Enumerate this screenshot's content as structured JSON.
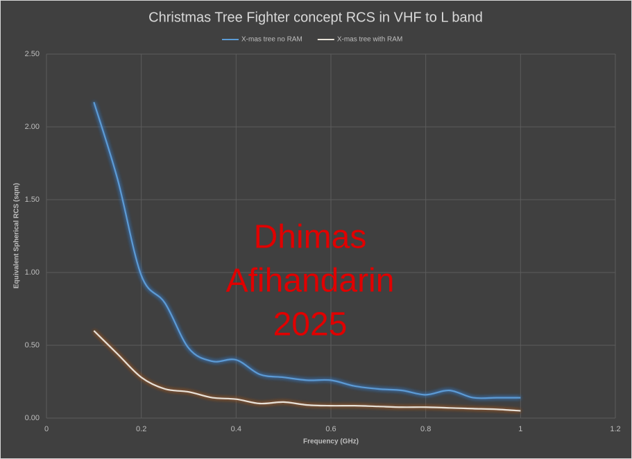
{
  "chart_data": {
    "type": "line",
    "title": "Christmas Tree Fighter concept RCS in VHF to L band",
    "x_label": "Frequency  (GHz)",
    "y_label": "Equivalent Spherical RCS (sqm)",
    "x": [
      0.1,
      0.15,
      0.2,
      0.25,
      0.3,
      0.35,
      0.4,
      0.45,
      0.5,
      0.55,
      0.6,
      0.65,
      0.7,
      0.75,
      0.8,
      0.85,
      0.9,
      0.95,
      1.0
    ],
    "series": [
      {
        "name": "X-mas tree no RAM",
        "color": "#5b9bd5",
        "values": [
          2.17,
          1.64,
          0.98,
          0.79,
          0.48,
          0.39,
          0.4,
          0.3,
          0.28,
          0.26,
          0.26,
          0.22,
          0.2,
          0.19,
          0.16,
          0.19,
          0.14,
          0.14,
          0.14
        ]
      },
      {
        "name": "X-mas tree with RAM",
        "color": "#e8e2d8",
        "values": [
          0.6,
          0.44,
          0.28,
          0.2,
          0.18,
          0.14,
          0.13,
          0.1,
          0.11,
          0.09,
          0.085,
          0.085,
          0.08,
          0.075,
          0.075,
          0.07,
          0.065,
          0.06,
          0.05
        ]
      }
    ],
    "xlim": [
      0,
      1.2
    ],
    "xticks": [
      0,
      0.2,
      0.4,
      0.6,
      0.8,
      1,
      1.2
    ],
    "ylim": [
      0,
      2.5
    ],
    "yticks": [
      {
        "value": 0,
        "label": "0.00"
      },
      {
        "value": 0.5,
        "label": "0.50"
      },
      {
        "value": 1,
        "label": "1.00"
      },
      {
        "value": 1.5,
        "label": "1.50"
      },
      {
        "value": 2,
        "label": "2.00"
      },
      {
        "value": 2.5,
        "label": "2.50"
      }
    ],
    "grid": true,
    "legend": "top",
    "annotations": [
      "Dhimas",
      "Afihandarin",
      "2025"
    ],
    "annotation_color": "#e00000"
  }
}
